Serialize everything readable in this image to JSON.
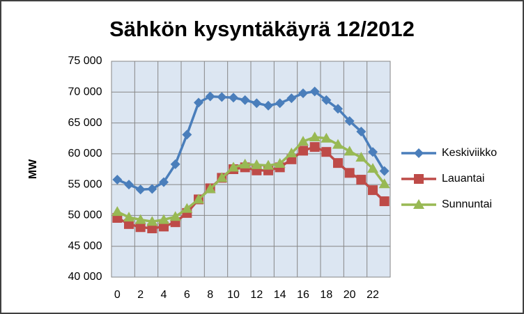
{
  "chart_data": {
    "type": "line",
    "title": "Sähkön kysyntäkäyrä 12/2012",
    "y_label": "MW",
    "categories": [
      "0",
      null,
      "2",
      null,
      "4",
      null,
      "6",
      null,
      "8",
      null,
      "10",
      null,
      "12",
      null,
      "14",
      null,
      "16",
      null,
      "18",
      null,
      "20",
      null,
      "22",
      null
    ],
    "series": [
      {
        "name": "Keskiviikko",
        "color": "#4a7ebb",
        "marker": "diamond",
        "values": [
          55800,
          55000,
          54200,
          54300,
          55400,
          58300,
          63100,
          68300,
          69300,
          69200,
          69100,
          68700,
          68200,
          67800,
          68200,
          69000,
          69800,
          70100,
          68700,
          67300,
          65300,
          63600,
          60300,
          57200
        ]
      },
      {
        "name": "Lauantai",
        "color": "#be4b48",
        "marker": "square",
        "values": [
          49600,
          48600,
          48100,
          47900,
          48200,
          48900,
          50400,
          52600,
          54400,
          56100,
          57500,
          57800,
          57300,
          57300,
          57800,
          59100,
          60500,
          61100,
          60300,
          58500,
          56900,
          55800,
          54100,
          52300
        ]
      },
      {
        "name": "Sunnuntai",
        "color": "#98b954",
        "marker": "triangle",
        "values": [
          50600,
          49700,
          49300,
          49000,
          49300,
          49800,
          51100,
          52600,
          54300,
          56100,
          57800,
          58300,
          58200,
          58100,
          58400,
          60100,
          62000,
          62700,
          62500,
          61500,
          60400,
          59400,
          57600,
          55100
        ]
      }
    ],
    "ylim": [
      40000,
      75000
    ],
    "yticks": [
      {
        "value": 40000,
        "label": "40 000"
      },
      {
        "value": 45000,
        "label": "45 000"
      },
      {
        "value": 50000,
        "label": "50 000"
      },
      {
        "value": 55000,
        "label": "55 000"
      },
      {
        "value": 60000,
        "label": "60 000"
      },
      {
        "value": 65000,
        "label": "65 000"
      },
      {
        "value": 70000,
        "label": "70 000"
      },
      {
        "value": 75000,
        "label": "75 000"
      }
    ],
    "grid": true,
    "legend": "right",
    "plot_background": "#dce6f2"
  }
}
